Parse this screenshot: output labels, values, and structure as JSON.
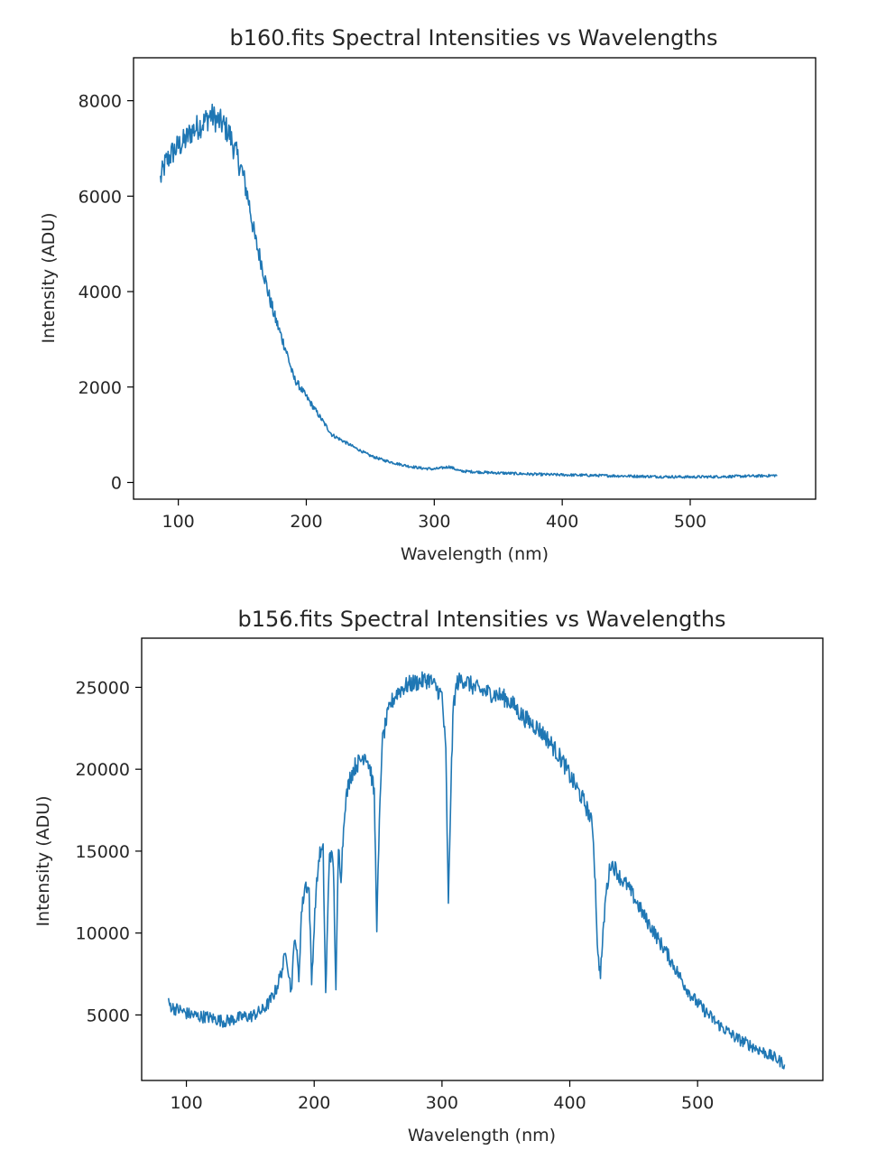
{
  "series_color": "#1f77b4",
  "chart_data": [
    {
      "type": "line",
      "title": "b160.fits Spectral Intensities vs Wavelengths",
      "xlabel": "Wavelength (nm)",
      "ylabel": "Intensity (ADU)",
      "xlim": [
        65,
        598
      ],
      "ylim": [
        -350,
        8900
      ],
      "xticks": [
        100,
        200,
        300,
        400,
        500
      ],
      "xtick_labels": [
        "100",
        "200",
        "300",
        "400",
        "500"
      ],
      "yticks": [
        0,
        2000,
        4000,
        6000,
        8000
      ],
      "ytick_labels": [
        "0",
        "2000",
        "4000",
        "6000",
        "8000"
      ],
      "grid": false,
      "noise": 280,
      "series": [
        {
          "x": [
            86,
            90,
            95,
            100,
            105,
            110,
            115,
            120,
            125,
            130,
            135,
            140,
            145,
            150,
            155,
            160,
            165,
            170,
            175,
            180,
            185,
            190,
            195,
            200,
            205,
            210,
            215,
            220,
            230,
            240,
            250,
            260,
            270,
            280,
            290,
            300,
            312,
            320,
            340,
            360,
            380,
            400,
            420,
            440,
            460,
            480,
            500,
            520,
            540,
            560,
            568
          ],
          "y": [
            6350,
            6700,
            6900,
            7050,
            7150,
            7350,
            7450,
            7550,
            7700,
            7600,
            7500,
            7300,
            6900,
            6500,
            5900,
            5100,
            4600,
            4000,
            3500,
            3100,
            2700,
            2200,
            2000,
            1800,
            1600,
            1400,
            1200,
            1000,
            850,
            700,
            560,
            470,
            400,
            340,
            300,
            280,
            330,
            240,
            210,
            190,
            170,
            160,
            150,
            140,
            130,
            120,
            115,
            120,
            130,
            140,
            150
          ]
        }
      ]
    },
    {
      "type": "line",
      "title": "b156.fits Spectral Intensities vs Wavelengths",
      "xlabel": "Wavelength (nm)",
      "ylabel": "Intensity (ADU)",
      "xlim": [
        65,
        598
      ],
      "ylim": [
        1000,
        28000
      ],
      "xticks": [
        100,
        200,
        300,
        400,
        500
      ],
      "xtick_labels": [
        "100",
        "200",
        "300",
        "400",
        "500"
      ],
      "yticks": [
        5000,
        10000,
        15000,
        20000,
        25000
      ],
      "ytick_labels": [
        "5000",
        "10000",
        "15000",
        "20000",
        "25000"
      ],
      "grid": false,
      "noise": 550,
      "series": [
        {
          "x": [
            86,
            90,
            95,
            100,
            105,
            110,
            115,
            120,
            125,
            130,
            135,
            140,
            145,
            150,
            155,
            160,
            165,
            170,
            175,
            178,
            182,
            185,
            188,
            190,
            193,
            196,
            198,
            201,
            204,
            207,
            209,
            212,
            215,
            217,
            219,
            221,
            224,
            228,
            232,
            236,
            240,
            244,
            247,
            249,
            251,
            253,
            256,
            260,
            265,
            270,
            275,
            280,
            285,
            290,
            295,
            300,
            303,
            305,
            307,
            309,
            312,
            316,
            320,
            325,
            330,
            335,
            340,
            345,
            350,
            355,
            360,
            365,
            370,
            375,
            380,
            385,
            390,
            395,
            400,
            405,
            410,
            415,
            418,
            420,
            422,
            424,
            426,
            428,
            432,
            436,
            440,
            445,
            450,
            455,
            460,
            465,
            470,
            475,
            480,
            485,
            490,
            495,
            500,
            505,
            510,
            515,
            520,
            525,
            530,
            535,
            540,
            545,
            550,
            555,
            560,
            564,
            568
          ],
          "y": [
            5700,
            5400,
            5300,
            5100,
            5000,
            4900,
            4900,
            4800,
            4700,
            4600,
            4700,
            4800,
            4900,
            4900,
            5100,
            5300,
            5800,
            6500,
            7800,
            8900,
            6400,
            10000,
            7200,
            11200,
            13000,
            12600,
            7000,
            12000,
            14800,
            15000,
            6200,
            15100,
            14200,
            6500,
            15200,
            13500,
            17800,
            19500,
            20200,
            20500,
            21000,
            20000,
            18500,
            10500,
            16500,
            21500,
            22800,
            24000,
            24700,
            25000,
            25200,
            25300,
            25400,
            25500,
            25000,
            24500,
            21000,
            11600,
            19000,
            24000,
            25300,
            25500,
            25300,
            25000,
            24800,
            24700,
            24600,
            24500,
            24300,
            24000,
            23500,
            23100,
            22800,
            22500,
            22100,
            21600,
            21000,
            20400,
            19600,
            18900,
            18200,
            17300,
            16400,
            13000,
            8500,
            7600,
            9800,
            12200,
            14300,
            13900,
            13300,
            12900,
            12200,
            11500,
            10800,
            10200,
            9500,
            8900,
            8200,
            7500,
            6800,
            6200,
            5700,
            5300,
            4900,
            4500,
            4200,
            3900,
            3600,
            3400,
            3200,
            3000,
            2800,
            2600,
            2400,
            2200,
            2000
          ]
        }
      ]
    }
  ]
}
